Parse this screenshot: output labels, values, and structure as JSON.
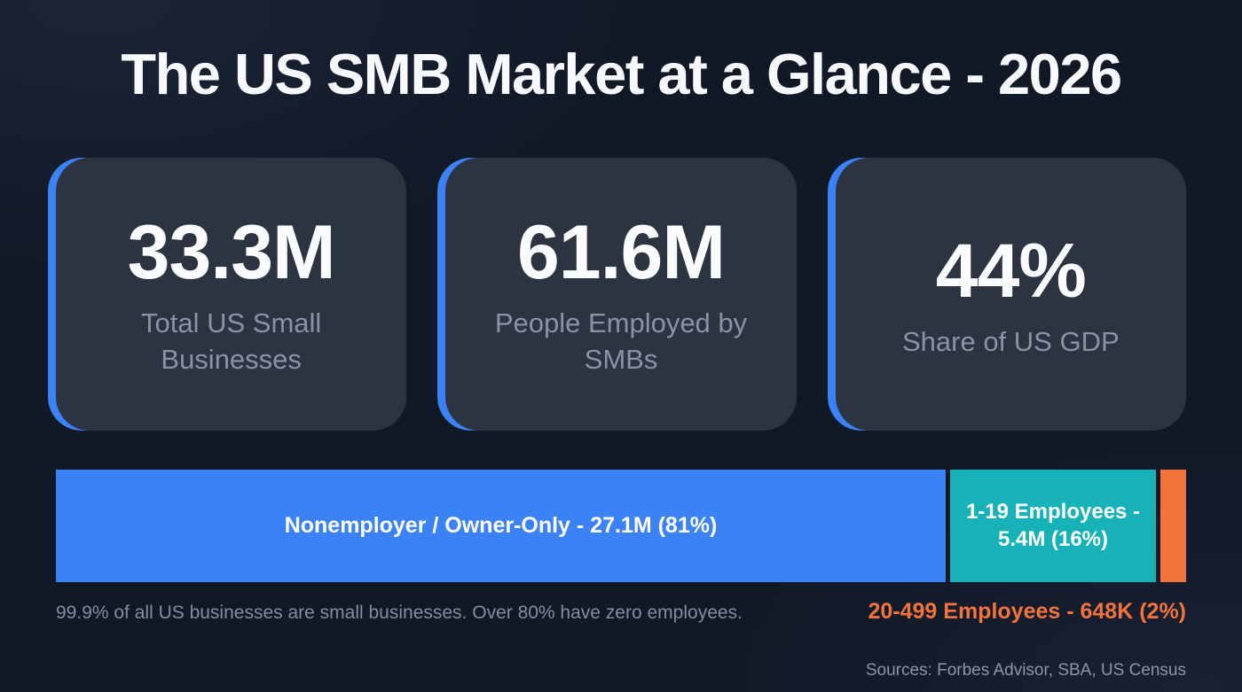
{
  "title": "The US SMB Market at a Glance - 2026",
  "stats": [
    {
      "value": "33.3M",
      "label": "Total US Small Businesses"
    },
    {
      "value": "61.6M",
      "label": "People Employed by SMBs"
    },
    {
      "value": "44%",
      "label": "Share of US GDP"
    }
  ],
  "chart_data": {
    "type": "bar",
    "orientation": "horizontal",
    "stacked": true,
    "categories": [
      "Nonemployer / Owner-Only",
      "1-19 Employees",
      "20-499 Employees"
    ],
    "values_percent": [
      81,
      16,
      2
    ],
    "values_count_text": [
      "27.1M",
      "5.4M",
      "648K"
    ],
    "segments": [
      {
        "name": "Nonemployer / Owner-Only",
        "value_text": "27.1M",
        "percent": 81,
        "color": "#3b82f6",
        "label": "Nonemployer / Owner-Only - 27.1M (81%)"
      },
      {
        "name": "1-19 Employees",
        "value_text": "5.4M",
        "percent": 16,
        "color": "#17b1b8",
        "label": "1-19 Employees - 5.4M (16%)"
      },
      {
        "name": "20-499 Employees",
        "value_text": "648K",
        "percent": 2,
        "color": "#f2743c",
        "label": "20-499 Employees - 648K (2%)"
      }
    ]
  },
  "footnote": "99.9% of all US businesses are small businesses. Over 80% have zero employees.",
  "sources": "Sources: Forbes Advisor, SBA, US Census",
  "colors": {
    "background": "#111927",
    "card_background": "#2c3442",
    "accent_blue": "#3b82f6",
    "teal": "#17b1b8",
    "orange": "#f2743c",
    "muted_text": "#8a93a5"
  }
}
